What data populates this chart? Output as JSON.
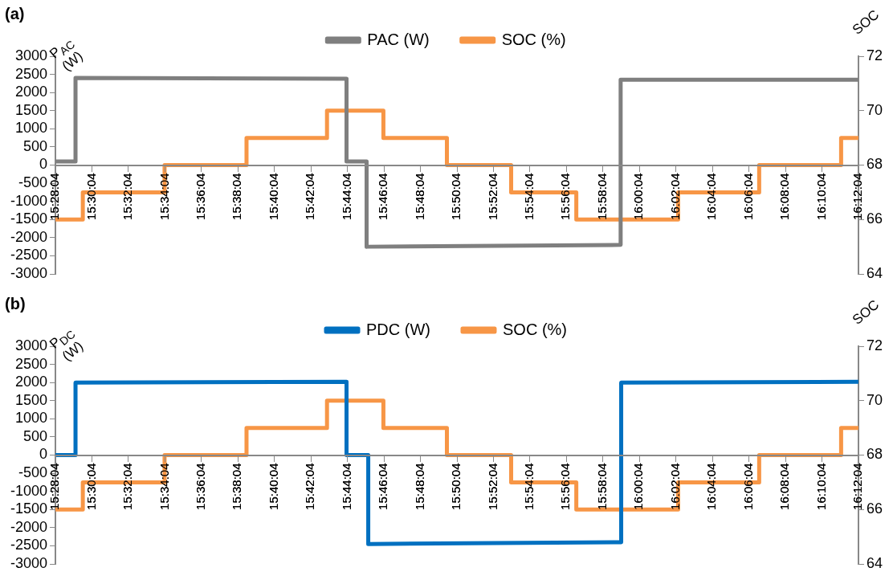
{
  "chart_data": [
    {
      "type": "line",
      "title": "(a)",
      "ylabel": "P$_{AC}$ (W)",
      "y2label": "SOC",
      "legend": "top",
      "xlim": [
        15.46778,
        16.20111
      ],
      "xticks": [
        {
          "value": 15.46778,
          "label": "15:28:04"
        },
        {
          "value": 15.50111,
          "label": "15:30:04"
        },
        {
          "value": 15.53444,
          "label": "15:32:04"
        },
        {
          "value": 15.56778,
          "label": "15:34:04"
        },
        {
          "value": 15.60111,
          "label": "15:36:04"
        },
        {
          "value": 15.63444,
          "label": "15:38:04"
        },
        {
          "value": 15.66778,
          "label": "15:40:04"
        },
        {
          "value": 15.70111,
          "label": "15:42:04"
        },
        {
          "value": 15.73444,
          "label": "15:44:04"
        },
        {
          "value": 15.76778,
          "label": "15:46:04"
        },
        {
          "value": 15.80111,
          "label": "15:48:04"
        },
        {
          "value": 15.83444,
          "label": "15:50:04"
        },
        {
          "value": 15.86778,
          "label": "15:52:04"
        },
        {
          "value": 15.90111,
          "label": "15:54:04"
        },
        {
          "value": 15.93444,
          "label": "15:56:04"
        },
        {
          "value": 15.96778,
          "label": "15:58:04"
        },
        {
          "value": 16.00111,
          "label": "16:00:04"
        },
        {
          "value": 16.03444,
          "label": "16:02:04"
        },
        {
          "value": 16.06778,
          "label": "16:04:04"
        },
        {
          "value": 16.10111,
          "label": "16:06:04"
        },
        {
          "value": 16.13444,
          "label": "16:08:04"
        },
        {
          "value": 16.16778,
          "label": "16:10:04"
        },
        {
          "value": 16.20111,
          "label": "16:12:04"
        }
      ],
      "ylim": [
        -3000,
        3000
      ],
      "yticks": [
        -3000,
        -2500,
        -2000,
        -1500,
        -1000,
        -500,
        0,
        500,
        1000,
        1500,
        2000,
        2500,
        3000
      ],
      "y2lim": [
        64,
        72
      ],
      "y2ticks": [
        64,
        66,
        68,
        70,
        72
      ],
      "series": [
        {
          "name": "PAC (W)",
          "color": "#7f7f7f",
          "x": [
            15.46778,
            15.48611,
            15.48611,
            15.73361,
            15.73361,
            15.75194,
            15.75194,
            15.98394,
            15.98394,
            16.20111
          ],
          "values": [
            100,
            100,
            2400,
            2380,
            100,
            100,
            -2250,
            -2200,
            2350,
            2350
          ]
        },
        {
          "name": "SOC (%)",
          "color": "#f79646",
          "axis": "y2",
          "x": [
            15.46778,
            15.49278,
            15.49278,
            15.56745,
            15.56745,
            15.64228,
            15.64228,
            15.71578,
            15.71578,
            15.76728,
            15.76728,
            15.82528,
            15.82528,
            15.88395,
            15.88395,
            15.94345,
            15.94345,
            16.03645,
            16.03645,
            16.11045,
            16.11045,
            16.18528,
            16.18528,
            16.20111
          ],
          "values": [
            66,
            66,
            67,
            67,
            68,
            68,
            69,
            69,
            70,
            70,
            69,
            69,
            68,
            68,
            67,
            67,
            66,
            66,
            67,
            67,
            68,
            68,
            69,
            69
          ]
        }
      ]
    },
    {
      "type": "line",
      "title": "(b)",
      "ylabel": "P$_{DC}$ (W)",
      "y2label": "SOC",
      "legend": "top",
      "xlim": [
        15.46778,
        16.20111
      ],
      "xticks": [
        {
          "value": 15.46778,
          "label": "15:28:04"
        },
        {
          "value": 15.50111,
          "label": "15:30:04"
        },
        {
          "value": 15.53444,
          "label": "15:32:04"
        },
        {
          "value": 15.56778,
          "label": "15:34:04"
        },
        {
          "value": 15.60111,
          "label": "15:36:04"
        },
        {
          "value": 15.63444,
          "label": "15:38:04"
        },
        {
          "value": 15.66778,
          "label": "15:40:04"
        },
        {
          "value": 15.70111,
          "label": "15:42:04"
        },
        {
          "value": 15.73444,
          "label": "15:44:04"
        },
        {
          "value": 15.76778,
          "label": "15:46:04"
        },
        {
          "value": 15.80111,
          "label": "15:48:04"
        },
        {
          "value": 15.83444,
          "label": "15:50:04"
        },
        {
          "value": 15.86778,
          "label": "15:52:04"
        },
        {
          "value": 15.90111,
          "label": "15:54:04"
        },
        {
          "value": 15.93444,
          "label": "15:56:04"
        },
        {
          "value": 15.96778,
          "label": "15:58:04"
        },
        {
          "value": 16.00111,
          "label": "16:00:04"
        },
        {
          "value": 16.03444,
          "label": "16:02:04"
        },
        {
          "value": 16.06778,
          "label": "16:04:04"
        },
        {
          "value": 16.10111,
          "label": "16:06:04"
        },
        {
          "value": 16.13444,
          "label": "16:08:04"
        },
        {
          "value": 16.16778,
          "label": "16:10:04"
        },
        {
          "value": 16.20111,
          "label": "16:12:04"
        }
      ],
      "ylim": [
        -3000,
        3000
      ],
      "yticks": [
        -3000,
        -2500,
        -2000,
        -1500,
        -1000,
        -500,
        0,
        500,
        1000,
        1500,
        2000,
        2500,
        3000
      ],
      "y2lim": [
        64,
        72
      ],
      "y2ticks": [
        64,
        66,
        68,
        70,
        72
      ],
      "series": [
        {
          "name": "PDC (W)",
          "color": "#0070c0",
          "x": [
            15.46778,
            15.48611,
            15.48611,
            15.73361,
            15.73361,
            15.75345,
            15.75345,
            15.98444,
            15.98444,
            16.20111
          ],
          "values": [
            0,
            0,
            2000,
            2020,
            0,
            0,
            -2450,
            -2400,
            2000,
            2020
          ]
        },
        {
          "name": "SOC (%)",
          "color": "#f79646",
          "axis": "y2",
          "x": [
            15.46778,
            15.49278,
            15.49278,
            15.56745,
            15.56745,
            15.64228,
            15.64228,
            15.71578,
            15.71578,
            15.76728,
            15.76728,
            15.82528,
            15.82528,
            15.88395,
            15.88395,
            15.94345,
            15.94345,
            16.03645,
            16.03645,
            16.11045,
            16.11045,
            16.18528,
            16.18528,
            16.20111
          ],
          "values": [
            66,
            66,
            67,
            67,
            68,
            68,
            69,
            69,
            70,
            70,
            69,
            69,
            68,
            68,
            67,
            67,
            66,
            66,
            67,
            67,
            68,
            68,
            69,
            69
          ]
        }
      ]
    }
  ]
}
